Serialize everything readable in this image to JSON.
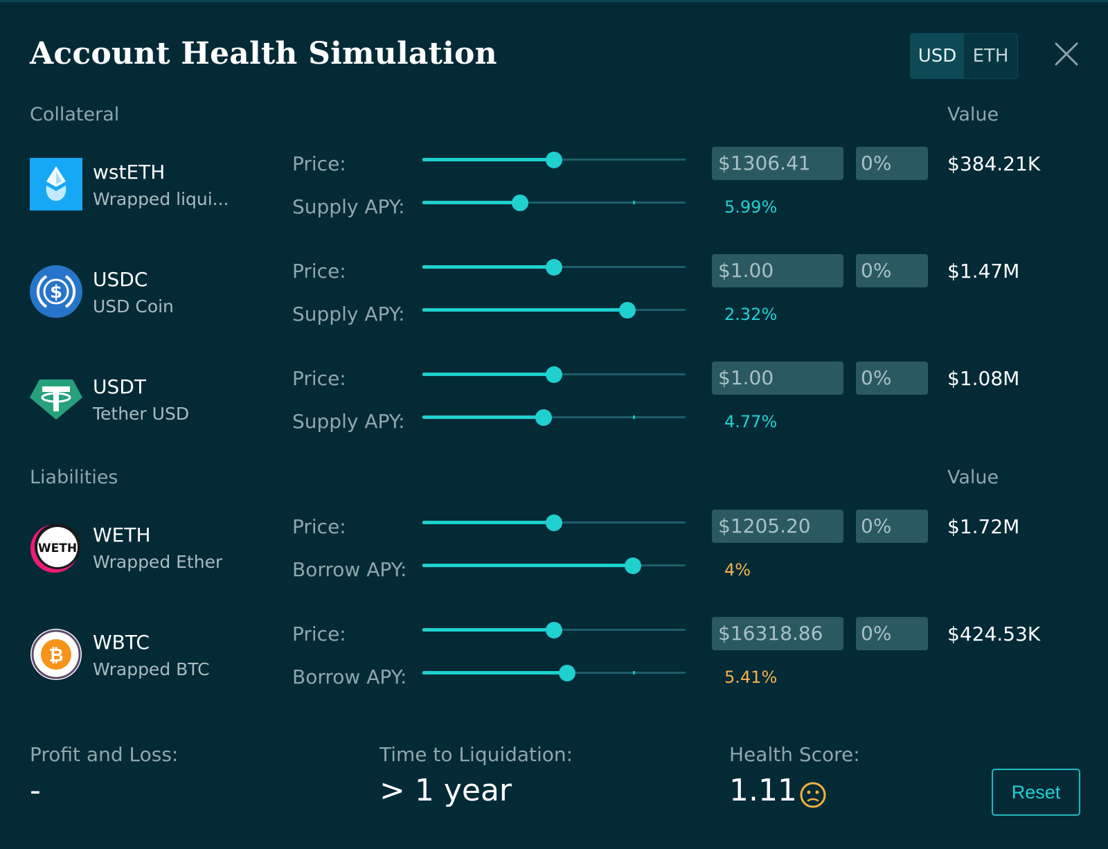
{
  "header": {
    "title": "Account Health Simulation",
    "currency_options": [
      "USD",
      "ETH"
    ],
    "selected_currency": "USD",
    "close_icon": "close-icon"
  },
  "collateral": {
    "label": "Collateral",
    "value_label": "Value",
    "assets": [
      {
        "symbol": "wstETH",
        "name": "Wrapped liqui...",
        "icon": "wsteth-icon",
        "price_label": "Price:",
        "price": "$1306.41",
        "price_change": "0%",
        "price_slider": 0.5,
        "apy_label": "Supply APY:",
        "apy": "5.99%",
        "apy_slider": 0.37,
        "value": "$384.21K"
      },
      {
        "symbol": "USDC",
        "name": "USD Coin",
        "icon": "usdc-icon",
        "price_label": "Price:",
        "price": "$1.00",
        "price_change": "0%",
        "price_slider": 0.5,
        "apy_label": "Supply APY:",
        "apy": "2.32%",
        "apy_slider": 0.78,
        "value": "$1.47M"
      },
      {
        "symbol": "USDT",
        "name": "Tether USD",
        "icon": "usdt-icon",
        "price_label": "Price:",
        "price": "$1.00",
        "price_change": "0%",
        "price_slider": 0.5,
        "apy_label": "Supply APY:",
        "apy": "4.77%",
        "apy_slider": 0.46,
        "value": "$1.08M"
      }
    ]
  },
  "liabilities": {
    "label": "Liabilities",
    "value_label": "Value",
    "assets": [
      {
        "symbol": "WETH",
        "name": "Wrapped Ether",
        "icon": "weth-icon",
        "icon_text": "WETH",
        "price_label": "Price:",
        "price": "$1205.20",
        "price_change": "0%",
        "price_slider": 0.5,
        "apy_label": "Borrow APY:",
        "apy": "4%",
        "apy_slider": 0.8,
        "value": "$1.72M"
      },
      {
        "symbol": "WBTC",
        "name": "Wrapped BTC",
        "icon": "wbtc-icon",
        "price_label": "Price:",
        "price": "$16318.86",
        "price_change": "0%",
        "price_slider": 0.5,
        "apy_label": "Borrow APY:",
        "apy": "5.41%",
        "apy_slider": 0.55,
        "value": "$424.53K"
      }
    ]
  },
  "footer": {
    "pnl_label": "Profit and Loss:",
    "pnl_value": "-",
    "ttl_label": "Time to Liquidation:",
    "ttl_value": "> 1 year",
    "health_label": "Health Score:",
    "health_value": "1.11",
    "health_icon": "neutral-face-icon",
    "reset_label": "Reset"
  },
  "colors": {
    "background": "#042a36",
    "accent": "#1fd0cf",
    "supply_apy": "#22d3d2",
    "borrow_apy": "#f6b24e",
    "health_icon": "#f3b33f"
  }
}
